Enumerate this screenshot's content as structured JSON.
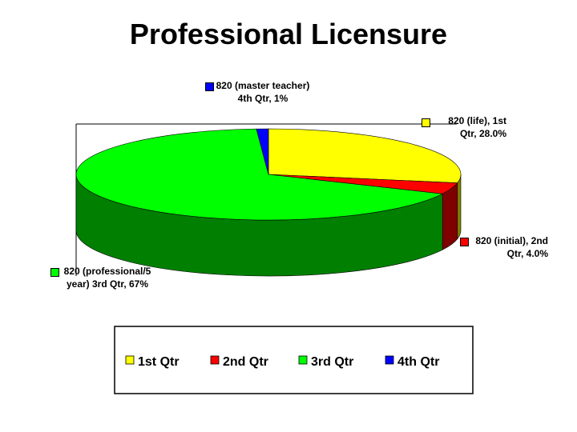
{
  "chart_data": {
    "type": "pie",
    "title": "Professional Licensure",
    "categories": [
      "1st Qtr",
      "2nd Qtr",
      "3rd Qtr",
      "4th Qtr"
    ],
    "values": [
      28,
      4,
      67,
      1
    ],
    "value_labels": [
      "820 (life), 1st Qtr, 28.0%",
      "820 (initial), 2nd Qtr, 4.0%",
      "820 (professional/5 year) 3rd Qtr, 67%",
      "820 (master teacher) 4th Qtr, 1%"
    ],
    "colors": [
      "#ffff00",
      "#ff0000",
      "#00ff00",
      "#0000ff"
    ],
    "legend": "bottom"
  }
}
